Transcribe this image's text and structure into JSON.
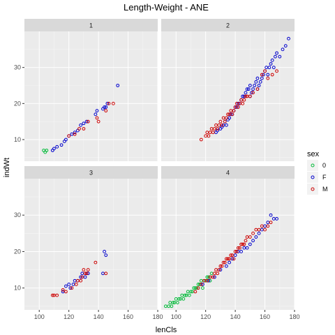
{
  "chart_data": {
    "type": "scatter",
    "title": "Length-Weight - ANE",
    "xlabel": "lenCls",
    "ylabel": "indWt",
    "xlim": [
      90,
      180
    ],
    "ylim": [
      4,
      40
    ],
    "x_ticks": [
      100,
      120,
      140,
      160,
      180
    ],
    "y_ticks": [
      10,
      20,
      30
    ],
    "grid": true,
    "legend": {
      "title": "sex",
      "position": "right",
      "entries": [
        {
          "label": "0",
          "color": "#00BA38"
        },
        {
          "label": "F",
          "color": "#0000CC"
        },
        {
          "label": "M",
          "color": "#CC0000"
        }
      ]
    },
    "panels": [
      {
        "label": "1",
        "series": [
          {
            "name": "0",
            "color": "#00BA38",
            "points": [
              [
                103,
                7
              ],
              [
                104,
                6.5
              ],
              [
                105,
                7
              ]
            ]
          },
          {
            "name": "F",
            "color": "#0000CC",
            "points": [
              [
                109,
                7
              ],
              [
                110,
                7.5
              ],
              [
                112,
                8
              ],
              [
                115,
                8.5
              ],
              [
                117,
                9.5
              ],
              [
                118,
                10
              ],
              [
                120,
                11
              ],
              [
                122,
                11.5
              ],
              [
                124,
                12
              ],
              [
                126,
                12.5
              ],
              [
                128,
                14
              ],
              [
                130,
                14.5
              ],
              [
                132,
                15
              ],
              [
                138,
                17
              ],
              [
                139,
                18
              ],
              [
                143,
                18.5
              ],
              [
                144,
                19
              ],
              [
                145,
                19
              ],
              [
                146,
                20
              ],
              [
                153,
                25
              ]
            ]
          },
          {
            "name": "M",
            "color": "#CC0000",
            "points": [
              [
                120,
                11
              ],
              [
                124,
                11.5
              ],
              [
                127,
                13
              ],
              [
                130,
                13
              ],
              [
                133,
                15
              ],
              [
                139,
                16
              ],
              [
                140,
                15
              ],
              [
                145,
                18
              ],
              [
                147,
                20
              ],
              [
                150,
                20
              ]
            ]
          }
        ]
      },
      {
        "label": "2",
        "series": [
          {
            "name": "0",
            "color": "#00BA38",
            "points": []
          },
          {
            "name": "F",
            "color": "#0000CC",
            "points": [
              [
                127,
                12
              ],
              [
                128,
                12.5
              ],
              [
                130,
                13
              ],
              [
                131,
                13.5
              ],
              [
                132,
                14
              ],
              [
                133,
                15
              ],
              [
                134,
                14
              ],
              [
                135,
                15.5
              ],
              [
                136,
                16
              ],
              [
                137,
                17
              ],
              [
                138,
                17
              ],
              [
                139,
                18
              ],
              [
                140,
                19
              ],
              [
                141,
                19
              ],
              [
                142,
                20
              ],
              [
                143,
                20
              ],
              [
                144,
                21
              ],
              [
                145,
                22
              ],
              [
                146,
                22
              ],
              [
                147,
                23
              ],
              [
                148,
                24
              ],
              [
                149,
                24
              ],
              [
                150,
                25
              ],
              [
                150,
                22
              ],
              [
                151,
                23
              ],
              [
                152,
                24
              ],
              [
                153,
                25
              ],
              [
                154,
                26
              ],
              [
                155,
                27
              ],
              [
                155,
                24
              ],
              [
                156,
                25
              ],
              [
                157,
                26
              ],
              [
                158,
                27
              ],
              [
                159,
                28
              ],
              [
                160,
                29
              ],
              [
                161,
                30
              ],
              [
                162,
                28
              ],
              [
                163,
                30
              ],
              [
                164,
                31
              ],
              [
                165,
                32
              ],
              [
                166,
                30
              ],
              [
                167,
                33
              ],
              [
                168,
                34
              ],
              [
                170,
                33
              ],
              [
                172,
                35
              ],
              [
                174,
                36
              ],
              [
                176,
                38
              ]
            ]
          },
          {
            "name": "M",
            "color": "#CC0000",
            "points": [
              [
                117,
                10
              ],
              [
                120,
                11
              ],
              [
                121,
                12
              ],
              [
                122,
                11
              ],
              [
                123,
                12
              ],
              [
                124,
                13
              ],
              [
                125,
                12
              ],
              [
                126,
                13
              ],
              [
                127,
                14
              ],
              [
                128,
                13
              ],
              [
                129,
                14
              ],
              [
                130,
                15
              ],
              [
                131,
                14
              ],
              [
                132,
                16
              ],
              [
                133,
                15
              ],
              [
                134,
                16
              ],
              [
                135,
                17
              ],
              [
                136,
                17
              ],
              [
                137,
                18
              ],
              [
                138,
                17
              ],
              [
                139,
                18
              ],
              [
                140,
                19
              ],
              [
                141,
                20
              ],
              [
                142,
                19
              ],
              [
                143,
                20
              ],
              [
                144,
                21
              ],
              [
                145,
                20
              ],
              [
                146,
                21
              ],
              [
                147,
                22
              ],
              [
                148,
                22
              ],
              [
                150,
                22
              ],
              [
                152,
                23
              ],
              [
                155,
                24
              ],
              [
                158,
                28
              ],
              [
                160,
                29
              ],
              [
                162,
                27
              ],
              [
                165,
                28
              ],
              [
                168,
                29
              ]
            ]
          }
        ]
      },
      {
        "label": "3",
        "series": [
          {
            "name": "0",
            "color": "#00BA38",
            "points": []
          },
          {
            "name": "F",
            "color": "#0000CC",
            "points": [
              [
                116,
                9
              ],
              [
                118,
                10.5
              ],
              [
                120,
                11
              ],
              [
                121,
                10
              ],
              [
                123,
                11
              ],
              [
                124,
                12
              ],
              [
                126,
                12
              ],
              [
                128,
                13
              ],
              [
                129,
                14
              ],
              [
                131,
                13
              ],
              [
                132,
                14
              ],
              [
                133,
                14
              ],
              [
                143,
                14
              ],
              [
                144,
                20
              ],
              [
                145,
                19
              ]
            ]
          },
          {
            "name": "M",
            "color": "#CC0000",
            "points": [
              [
                109,
                8
              ],
              [
                110,
                8
              ],
              [
                112,
                8
              ],
              [
                116,
                9.5
              ],
              [
                118,
                9
              ],
              [
                122,
                10
              ],
              [
                125,
                11
              ],
              [
                126,
                12
              ],
              [
                128,
                12
              ],
              [
                129,
                13
              ],
              [
                130,
                15
              ],
              [
                131,
                14
              ],
              [
                132,
                14
              ],
              [
                133,
                15
              ],
              [
                138,
                17
              ],
              [
                145,
                14
              ]
            ]
          }
        ]
      },
      {
        "label": "4",
        "series": [
          {
            "name": "0",
            "color": "#00BA38",
            "points": [
              [
                93,
                5
              ],
              [
                95,
                5
              ],
              [
                96,
                6
              ],
              [
                97,
                5
              ],
              [
                98,
                6
              ],
              [
                99,
                6
              ],
              [
                100,
                7
              ],
              [
                101,
                6
              ],
              [
                102,
                7
              ],
              [
                103,
                7
              ],
              [
                104,
                8
              ],
              [
                105,
                7
              ],
              [
                106,
                8
              ],
              [
                107,
                8
              ],
              [
                108,
                9
              ],
              [
                109,
                8
              ],
              [
                110,
                9
              ],
              [
                111,
                9
              ],
              [
                112,
                10
              ],
              [
                113,
                10
              ],
              [
                114,
                10
              ],
              [
                115,
                11
              ],
              [
                116,
                11
              ],
              [
                117,
                12
              ],
              [
                118,
                10
              ],
              [
                119,
                12
              ],
              [
                120,
                12
              ],
              [
                121,
                13
              ],
              [
                122,
                13
              ],
              [
                123,
                12
              ],
              [
                124,
                14
              ]
            ]
          },
          {
            "name": "F",
            "color": "#0000CC",
            "points": [
              [
                118,
                11
              ],
              [
                122,
                12
              ],
              [
                126,
                13
              ],
              [
                130,
                15
              ],
              [
                134,
                16
              ],
              [
                136,
                17
              ],
              [
                138,
                18
              ],
              [
                140,
                19
              ],
              [
                142,
                20
              ],
              [
                144,
                20
              ],
              [
                146,
                21
              ],
              [
                148,
                21
              ],
              [
                150,
                22
              ],
              [
                152,
                23
              ],
              [
                154,
                24
              ],
              [
                156,
                25
              ],
              [
                158,
                26
              ],
              [
                160,
                27
              ],
              [
                162,
                28
              ],
              [
                164,
                30
              ],
              [
                166,
                29
              ],
              [
                168,
                29
              ]
            ]
          },
          {
            "name": "M",
            "color": "#CC0000",
            "points": [
              [
                113,
                9
              ],
              [
                115,
                10
              ],
              [
                117,
                11
              ],
              [
                119,
                12
              ],
              [
                121,
                12
              ],
              [
                123,
                13
              ],
              [
                125,
                13
              ],
              [
                126,
                14
              ],
              [
                127,
                15
              ],
              [
                128,
                14
              ],
              [
                129,
                15
              ],
              [
                130,
                16
              ],
              [
                131,
                16
              ],
              [
                132,
                17
              ],
              [
                133,
                17
              ],
              [
                134,
                18
              ],
              [
                135,
                18
              ],
              [
                136,
                18
              ],
              [
                137,
                19
              ],
              [
                138,
                19
              ],
              [
                139,
                18
              ],
              [
                140,
                20
              ],
              [
                141,
                20
              ],
              [
                142,
                21
              ],
              [
                143,
                21
              ],
              [
                144,
                22
              ],
              [
                145,
                22
              ],
              [
                146,
                22
              ],
              [
                147,
                23
              ],
              [
                148,
                24
              ],
              [
                150,
                24
              ],
              [
                152,
                25
              ],
              [
                154,
                26
              ],
              [
                156,
                26
              ],
              [
                158,
                27
              ],
              [
                160,
                26
              ],
              [
                162,
                27
              ],
              [
                164,
                28
              ]
            ]
          }
        ]
      }
    ]
  }
}
